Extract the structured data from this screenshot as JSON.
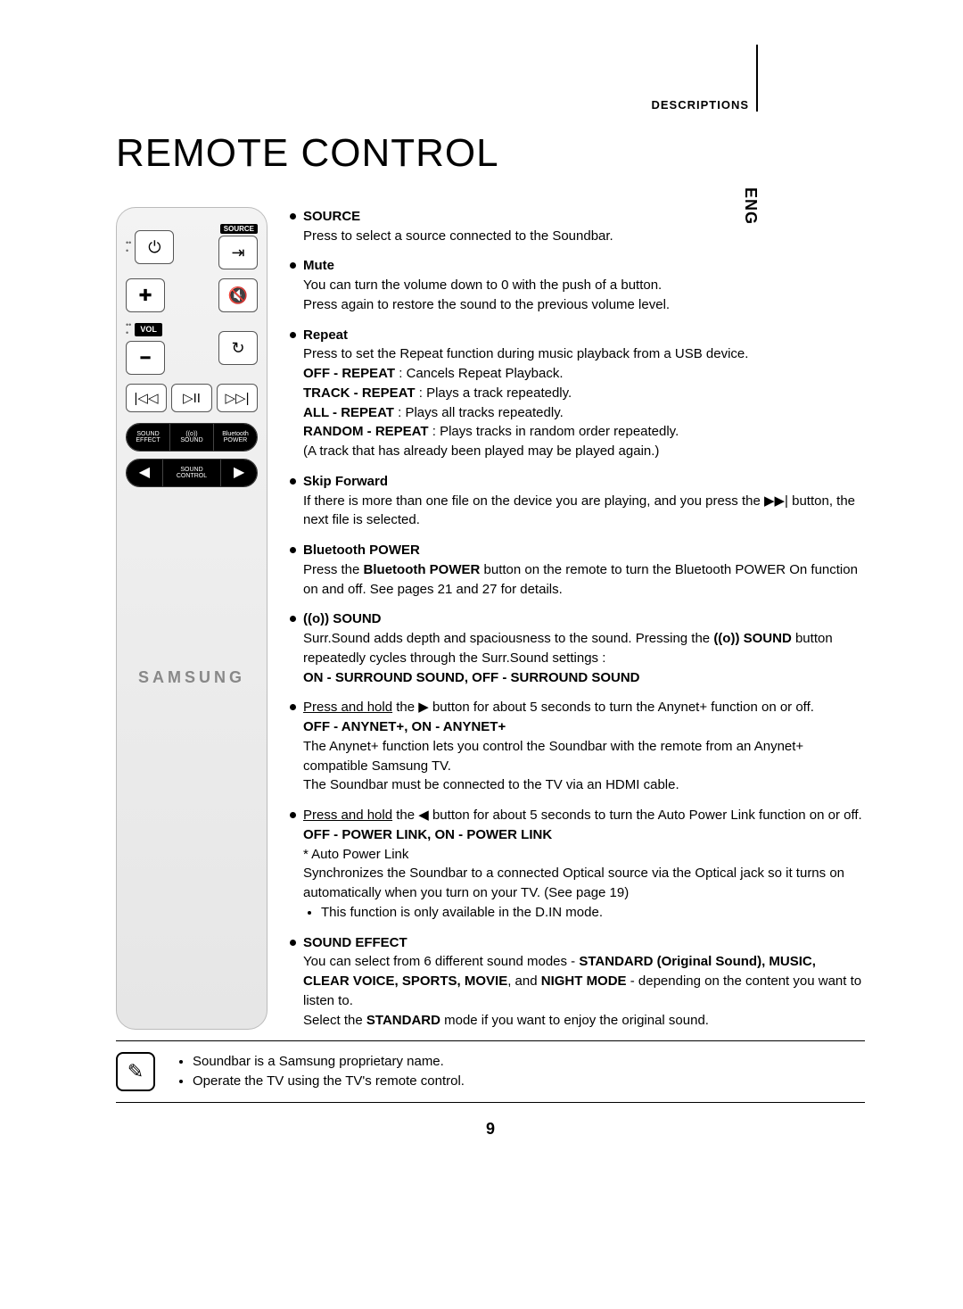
{
  "section_label": "DESCRIPTIONS",
  "side_tab": "ENG",
  "page_title": "REMOTE CONTROL",
  "remote": {
    "source_label": "SOURCE",
    "vol_label": "VOL",
    "pill1": {
      "seg1a": "SOUND",
      "seg1b": "EFFECT",
      "seg2a": "((o))",
      "seg2b": "SOUND",
      "seg3a": "Bluetooth",
      "seg3b": "POWER"
    },
    "pill2": {
      "left": "◀",
      "mid1": "SOUND",
      "mid2": "CONTROL",
      "right": "▶"
    },
    "brand": "SAMSUNG"
  },
  "descs": [
    {
      "title": "SOURCE",
      "body": "Press to select a source connected to the Soundbar."
    },
    {
      "title": "Mute",
      "body": "You can turn the volume down to 0 with the push of a button.\nPress again to restore the sound to the previous volume level."
    },
    {
      "title": "Repeat",
      "body": "Press to set the Repeat function during music playback from a USB device.",
      "lines": [
        {
          "b": "OFF - REPEAT",
          "t": " : Cancels Repeat Playback."
        },
        {
          "b": "TRACK - REPEAT",
          "t": " : Plays a track repeatedly."
        },
        {
          "b": "ALL - REPEAT",
          "t": " : Plays all tracks repeatedly."
        },
        {
          "b": "RANDOM - REPEAT",
          "t": " : Plays tracks in random order repeatedly."
        }
      ],
      "tail": "(A track that has already been played may be played again.)"
    },
    {
      "title": "Skip Forward",
      "body": "If there is more than one file on the device you are playing, and you press the ▶▶| button, the next file is selected."
    },
    {
      "title": "Bluetooth POWER",
      "body_pre": "Press the ",
      "body_b": "Bluetooth POWER",
      "body_post": " button on the remote to turn the Bluetooth POWER On function on and off. See pages 21 and 27 for details."
    },
    {
      "title": "((o)) SOUND",
      "body_pre": "Surr.Sound adds depth and spaciousness to the sound. Pressing the ",
      "body_b": "((o)) SOUND",
      "body_post": " button repeatedly cycles through the Surr.Sound settings :",
      "bold_line": "ON - SURROUND SOUND, OFF - SURROUND SOUND"
    },
    {
      "anynet_intro": "Press and hold the ▶ button for about 5 seconds to turn the Anynet+ function on or off.",
      "anynet_bold": "OFF - ANYNET+, ON - ANYNET+",
      "anynet_body": "The Anynet+ function lets you control the Soundbar with the remote from an Anynet+ compatible Samsung TV.\nThe Soundbar must be connected to the TV via an HDMI cable."
    },
    {
      "pl_intro": "Press and hold the ◀ button for about 5 seconds to turn the Auto Power Link function on or off.",
      "pl_bold": "OFF - POWER LINK, ON - POWER LINK",
      "pl_star": "* Auto Power Link",
      "pl_body": "Synchronizes the Soundbar to a connected Optical source via the Optical jack so it turns on automatically when you turn on your TV. (See page 19)",
      "pl_sub": "This function is only available in the D.IN mode."
    },
    {
      "title": "SOUND EFFECT",
      "se_pre": "You can select from 6 different sound modes - ",
      "se_b1": "STANDARD (Original Sound), MUSIC, CLEAR VOICE, SPORTS, MOVIE",
      "se_mid": ", and ",
      "se_b2": "NIGHT MODE",
      "se_post": " - depending on the content you want to listen to.",
      "se_line2_pre": "Select the ",
      "se_line2_b": "STANDARD",
      "se_line2_post": " mode if you want to enjoy the original sound."
    }
  ],
  "footnotes": [
    "Soundbar is a Samsung proprietary name.",
    "Operate the TV using the TV's remote control."
  ],
  "page_number": "9"
}
